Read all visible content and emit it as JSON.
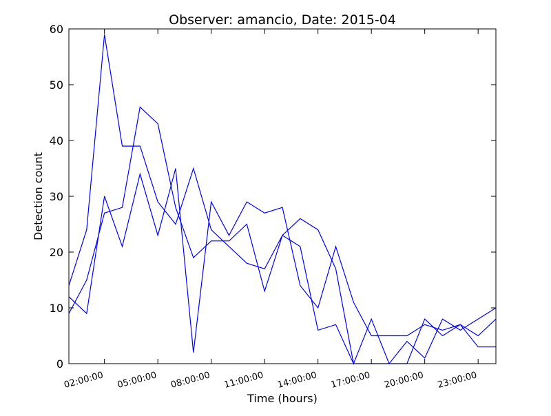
{
  "chart_data": {
    "type": "line",
    "title": "Observer: amancio, Date: 2015-04",
    "xlabel": "Time (hours)",
    "ylabel": "Detection count",
    "xlim": [
      "00:00:00",
      "24:00:00"
    ],
    "ylim": [
      0,
      60
    ],
    "xticks": [
      "02:00:00",
      "05:00:00",
      "08:00:00",
      "11:00:00",
      "14:00:00",
      "17:00:00",
      "20:00:00",
      "23:00:00"
    ],
    "yticks": [
      0,
      10,
      20,
      30,
      40,
      50,
      60
    ],
    "grid": false,
    "legend": "none",
    "line_color": "#0000ff",
    "series": [
      {
        "x": [
          "00:00:00",
          "01:00:00",
          "02:00:00",
          "03:00:00",
          "04:00:00",
          "05:00:00",
          "06:00:00",
          "07:00:00",
          "08:00:00",
          "09:00:00",
          "10:00:00",
          "11:00:00",
          "12:00:00",
          "13:00:00",
          "14:00:00",
          "15:00:00",
          "16:00:00",
          "17:00:00",
          "18:00:00",
          "19:00:00",
          "20:00:00",
          "21:00:00",
          "22:00:00",
          "23:00:00",
          "24:00:00"
        ],
        "values": [
          14,
          24,
          59,
          39,
          39,
          29,
          25,
          35,
          24,
          21,
          18,
          17,
          23,
          21,
          6,
          7,
          0,
          0,
          0,
          0,
          8,
          5,
          7,
          3,
          3
        ]
      },
      {
        "x": [
          "00:00:00",
          "01:00:00",
          "02:00:00",
          "03:00:00",
          "04:00:00",
          "05:00:00",
          "06:00:00",
          "07:00:00",
          "08:00:00",
          "09:00:00",
          "10:00:00",
          "11:00:00",
          "12:00:00",
          "13:00:00",
          "14:00:00",
          "15:00:00",
          "16:00:00",
          "17:00:00",
          "18:00:00",
          "19:00:00",
          "20:00:00",
          "21:00:00",
          "22:00:00",
          "23:00:00",
          "24:00:00"
        ],
        "values": [
          9,
          15,
          27,
          28,
          46,
          43,
          28,
          19,
          22,
          22,
          25,
          13,
          23,
          26,
          24,
          17,
          0,
          8,
          0,
          4,
          1,
          8,
          6,
          8,
          10
        ]
      },
      {
        "x": [
          "00:00:00",
          "01:00:00",
          "02:00:00",
          "03:00:00",
          "04:00:00",
          "05:00:00",
          "06:00:00",
          "07:00:00",
          "08:00:00",
          "09:00:00",
          "10:00:00",
          "11:00:00",
          "12:00:00",
          "13:00:00",
          "14:00:00",
          "15:00:00",
          "16:00:00",
          "17:00:00",
          "18:00:00",
          "19:00:00",
          "20:00:00",
          "21:00:00",
          "22:00:00",
          "23:00:00",
          "24:00:00"
        ],
        "values": [
          12,
          9,
          30,
          21,
          34,
          23,
          35,
          2,
          29,
          23,
          29,
          27,
          28,
          14,
          10,
          21,
          11,
          5,
          5,
          5,
          7,
          6,
          7,
          5,
          8
        ]
      }
    ]
  }
}
